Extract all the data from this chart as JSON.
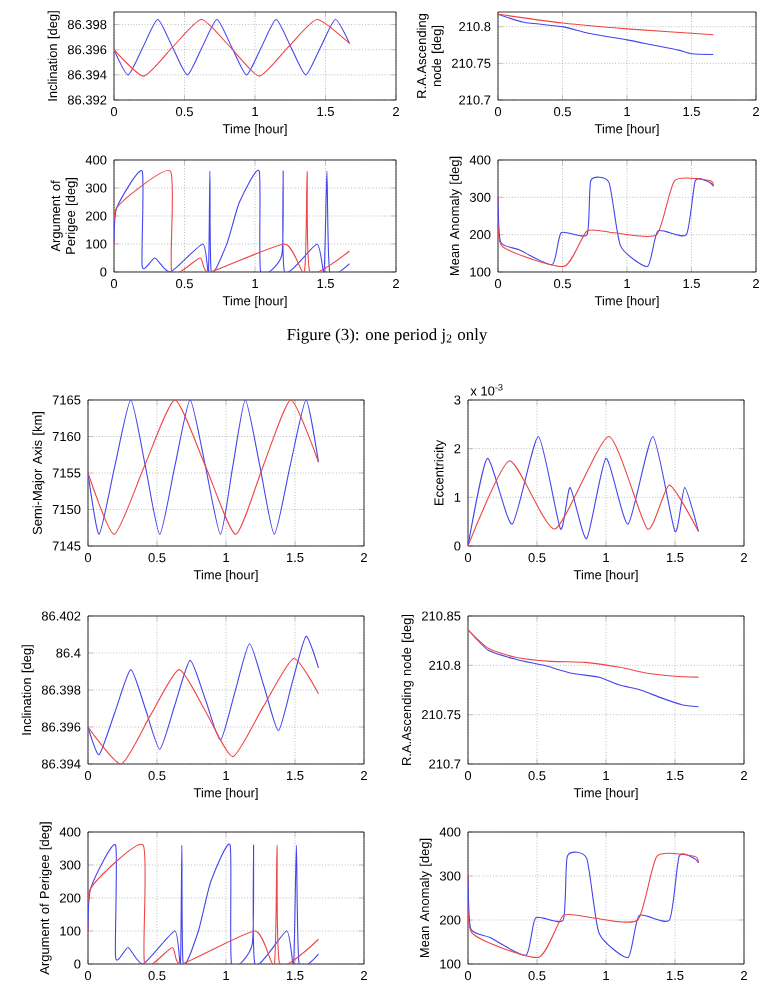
{
  "chart_data": [
    {
      "type": "line",
      "xlabel": "Time [hour]",
      "ylabel": "Inclination [deg]",
      "xlim": [
        0,
        2
      ],
      "xticks": [
        0,
        0.5,
        1,
        1.5,
        2
      ],
      "ylim": [
        86.392,
        86.399
      ],
      "yticks": [
        86.392,
        86.394,
        86.396,
        86.398
      ],
      "grid": true,
      "series": [
        {
          "color": "#4444ee",
          "x": [
            0,
            0.1,
            0.205,
            0.31,
            0.415,
            0.52,
            0.625,
            0.73,
            0.835,
            0.94,
            1.045,
            1.15,
            1.255,
            1.36,
            1.465,
            1.57,
            1.67
          ],
          "values": [
            86.396,
            86.394,
            86.3962,
            86.3984,
            86.3962,
            86.394,
            86.3962,
            86.3984,
            86.3962,
            86.394,
            86.3962,
            86.3984,
            86.3962,
            86.394,
            86.3962,
            86.3984,
            86.3965
          ]
        },
        {
          "color": "#ee4444",
          "x": [
            0,
            0.21,
            0.415,
            0.62,
            0.825,
            1.03,
            1.235,
            1.44,
            1.67
          ],
          "values": [
            86.396,
            86.3939,
            86.3962,
            86.3984,
            86.3962,
            86.3939,
            86.3962,
            86.3984,
            86.3965
          ]
        }
      ]
    },
    {
      "type": "line",
      "xlabel": "Time [hour]",
      "ylabel": "R.A.Ascending node [deg]",
      "xlim": [
        0,
        2
      ],
      "xticks": [
        0,
        0.5,
        1,
        1.5,
        2
      ],
      "ylim": [
        210.7,
        210.82
      ],
      "yticks": [
        210.7,
        210.75,
        210.8
      ],
      "grid": true,
      "series": [
        {
          "color": "#4444ee",
          "x": [
            0,
            0.2,
            0.5,
            0.7,
            1.0,
            1.2,
            1.4,
            1.5,
            1.67
          ],
          "values": [
            210.817,
            210.806,
            210.8,
            210.791,
            210.782,
            210.775,
            210.768,
            210.763,
            210.762
          ]
        },
        {
          "color": "#ee4444",
          "x": [
            0,
            0.5,
            1.0,
            1.67
          ],
          "values": [
            210.817,
            210.805,
            210.797,
            210.789
          ]
        }
      ]
    },
    {
      "type": "line",
      "xlabel": "Time [hour]",
      "ylabel": "Argument of Perigee [deg]",
      "xlim": [
        0,
        2
      ],
      "xticks": [
        0,
        0.5,
        1,
        1.5,
        2
      ],
      "ylim": [
        0,
        400
      ],
      "yticks": [
        0,
        100,
        200,
        300,
        400
      ],
      "grid": true,
      "series": [
        {
          "color": "#4444ee",
          "x": [
            0,
            0.02,
            0.2,
            0.2,
            0.29,
            0.4,
            0.63,
            0.67,
            0.68,
            0.69,
            0.8,
            0.89,
            1.03,
            1.04,
            1.19,
            1.2,
            1.21,
            1.44,
            1.49,
            1.51,
            1.53,
            1.67
          ],
          "values": [
            100,
            230,
            360,
            20,
            50,
            0,
            100,
            0,
            360,
            0,
            100,
            250,
            360,
            0,
            60,
            360,
            0,
            100,
            0,
            360,
            0,
            30
          ]
        },
        {
          "color": "#ee4444",
          "x": [
            0,
            0.02,
            0.4,
            0.41,
            0.61,
            0.68,
            1.21,
            1.35,
            1.37,
            1.39,
            1.67
          ],
          "values": [
            100,
            230,
            360,
            0,
            50,
            0,
            100,
            0,
            360,
            0,
            75
          ]
        }
      ]
    },
    {
      "type": "line",
      "xlabel": "Time [hour]",
      "ylabel": "Mean Anomaly [deg]",
      "xlim": [
        0,
        2
      ],
      "xticks": [
        0,
        0.5,
        1,
        1.5,
        2
      ],
      "ylim": [
        100,
        400
      ],
      "yticks": [
        100,
        200,
        300,
        400
      ],
      "grid": true,
      "annotations": [
        "Figure (3): one period j$_{2}$ only"
      ],
      "series": [
        {
          "color": "#4444ee",
          "x": [
            0,
            0.02,
            0.16,
            0.42,
            0.49,
            0.69,
            0.72,
            0.86,
            0.95,
            1.16,
            1.24,
            1.46,
            1.53,
            1.64,
            1.67
          ],
          "values": [
            300,
            180,
            160,
            120,
            205,
            200,
            345,
            340,
            170,
            115,
            210,
            200,
            345,
            340,
            330
          ]
        },
        {
          "color": "#ee4444",
          "x": [
            0,
            0.03,
            0.51,
            0.69,
            0.9,
            1.23,
            1.37,
            1.64,
            1.67
          ],
          "values": [
            300,
            170,
            115,
            210,
            205,
            200,
            345,
            345,
            330
          ]
        }
      ]
    },
    {
      "type": "line",
      "xlabel": "Time [hour]",
      "ylabel": "Semi-Major Axis [km]",
      "xlim": [
        0,
        2
      ],
      "xticks": [
        0,
        0.5,
        1,
        1.5,
        2
      ],
      "ylim": [
        7145,
        7165
      ],
      "yticks": [
        7145,
        7150,
        7155,
        7160,
        7165
      ],
      "grid": true,
      "series": [
        {
          "color": "#4444ee",
          "x": [
            0,
            0.08,
            0.195,
            0.31,
            0.415,
            0.52,
            0.63,
            0.74,
            0.85,
            0.96,
            1.05,
            1.14,
            1.245,
            1.35,
            1.465,
            1.58,
            1.67
          ],
          "values": [
            7155,
            7146.6,
            7156,
            7165,
            7156,
            7146.6,
            7156,
            7165,
            7156,
            7146.6,
            7156,
            7165,
            7156,
            7146.6,
            7156,
            7165,
            7156.5
          ]
        },
        {
          "color": "#ee4444",
          "x": [
            0,
            0.19,
            0.41,
            0.63,
            0.85,
            1.07,
            1.27,
            1.47,
            1.67
          ],
          "values": [
            7155,
            7146.6,
            7156,
            7165,
            7156,
            7146.6,
            7156,
            7165,
            7156.5
          ]
        }
      ]
    },
    {
      "type": "line",
      "xlabel": "Time [hour]",
      "ylabel": "Eccentricity",
      "xlim": [
        0,
        2
      ],
      "xticks": [
        0,
        0.5,
        1,
        1.5,
        2
      ],
      "ylim": [
        0,
        3
      ],
      "yticks": [
        0,
        1,
        2,
        3
      ],
      "grid": true,
      "annotations": [
        "x 10$^{-3}$"
      ],
      "series": [
        {
          "color": "#4444ee",
          "x": [
            0,
            0.14,
            0.32,
            0.51,
            0.67,
            0.74,
            0.86,
            1.0,
            1.16,
            1.34,
            1.5,
            1.57,
            1.67
          ],
          "values": [
            0,
            1.8,
            0.45,
            2.25,
            0.35,
            1.2,
            0.15,
            1.8,
            0.45,
            2.25,
            0.3,
            1.2,
            0.3
          ]
        },
        {
          "color": "#ee4444",
          "x": [
            0,
            0.3,
            0.63,
            1.02,
            1.3,
            1.46,
            1.67
          ],
          "values": [
            0,
            1.75,
            0.35,
            2.25,
            0.35,
            1.25,
            0.3
          ]
        }
      ]
    },
    {
      "type": "line",
      "xlabel": "Time [hour]",
      "ylabel": "Inclination [deg]",
      "xlim": [
        0,
        2
      ],
      "xticks": [
        0,
        0.5,
        1,
        1.5,
        2
      ],
      "ylim": [
        86.394,
        86.402
      ],
      "yticks": [
        86.394,
        86.396,
        86.398,
        86.4,
        86.402
      ],
      "grid": true,
      "series": [
        {
          "color": "#4444ee",
          "x": [
            0,
            0.08,
            0.195,
            0.31,
            0.415,
            0.52,
            0.63,
            0.74,
            0.85,
            0.96,
            1.065,
            1.17,
            1.275,
            1.38,
            1.48,
            1.58,
            1.67
          ],
          "values": [
            86.396,
            86.3945,
            86.3968,
            86.3991,
            86.397,
            86.3948,
            86.3972,
            86.3996,
            86.3975,
            86.3953,
            86.3979,
            86.4005,
            86.3982,
            86.3958,
            86.3984,
            86.4009,
            86.3992
          ]
        },
        {
          "color": "#ee4444",
          "x": [
            0,
            0.24,
            0.45,
            0.66,
            0.855,
            1.05,
            1.27,
            1.49,
            1.67
          ],
          "values": [
            86.396,
            86.394,
            86.3966,
            86.3991,
            86.3968,
            86.3944,
            86.3971,
            86.3997,
            86.3978
          ]
        }
      ]
    },
    {
      "type": "line",
      "xlabel": "Time [hour]",
      "ylabel": "R.A.Ascending node [deg]",
      "xlim": [
        0,
        2
      ],
      "xticks": [
        0,
        0.5,
        1,
        1.5,
        2
      ],
      "ylim": [
        210.7,
        210.85
      ],
      "yticks": [
        210.7,
        210.75,
        210.8,
        210.85
      ],
      "grid": true,
      "series": [
        {
          "color": "#4444ee",
          "x": [
            0,
            0.15,
            0.35,
            0.55,
            0.75,
            0.95,
            1.1,
            1.25,
            1.4,
            1.55,
            1.67
          ],
          "values": [
            210.836,
            210.815,
            210.806,
            210.8,
            210.792,
            210.788,
            210.78,
            210.775,
            210.767,
            210.76,
            210.758
          ]
        },
        {
          "color": "#ee4444",
          "x": [
            0,
            0.15,
            0.35,
            0.6,
            0.85,
            1.1,
            1.3,
            1.5,
            1.67
          ],
          "values": [
            210.836,
            210.817,
            210.808,
            210.804,
            210.803,
            210.798,
            210.792,
            210.789,
            210.788
          ]
        }
      ]
    },
    {
      "type": "line",
      "ylabel": "Argument of Perigee [deg]",
      "xlim": [
        0,
        2
      ],
      "xticks": [
        0,
        0.5,
        1,
        1.5,
        2
      ],
      "ylim": [
        0,
        400
      ],
      "yticks": [
        0,
        100,
        200,
        300,
        400
      ],
      "grid": true,
      "series": [
        {
          "color": "#4444ee",
          "x": [
            0,
            0.02,
            0.2,
            0.2,
            0.29,
            0.4,
            0.63,
            0.67,
            0.68,
            0.69,
            0.8,
            0.89,
            1.03,
            1.04,
            1.19,
            1.2,
            1.21,
            1.44,
            1.49,
            1.51,
            1.53,
            1.67
          ],
          "values": [
            100,
            230,
            360,
            20,
            50,
            0,
            100,
            0,
            360,
            0,
            100,
            250,
            360,
            0,
            60,
            360,
            0,
            100,
            0,
            360,
            0,
            30
          ]
        },
        {
          "color": "#ee4444",
          "x": [
            0,
            0.02,
            0.4,
            0.41,
            0.61,
            0.68,
            1.21,
            1.35,
            1.37,
            1.39,
            1.67
          ],
          "values": [
            100,
            230,
            360,
            0,
            50,
            0,
            100,
            0,
            360,
            0,
            75
          ]
        }
      ]
    },
    {
      "type": "line",
      "ylabel": "Mean Anomaly [deg]",
      "xlim": [
        0,
        2
      ],
      "xticks": [
        0,
        0.5,
        1,
        1.5,
        2
      ],
      "ylim": [
        100,
        400
      ],
      "yticks": [
        100,
        200,
        300,
        400
      ],
      "grid": true,
      "series": [
        {
          "color": "#4444ee",
          "x": [
            0,
            0.02,
            0.16,
            0.42,
            0.49,
            0.69,
            0.72,
            0.86,
            0.95,
            1.16,
            1.24,
            1.46,
            1.53,
            1.64,
            1.67
          ],
          "values": [
            300,
            180,
            160,
            120,
            205,
            200,
            345,
            340,
            170,
            115,
            210,
            200,
            345,
            340,
            330
          ]
        },
        {
          "color": "#ee4444",
          "x": [
            0,
            0.03,
            0.51,
            0.69,
            0.9,
            1.23,
            1.37,
            1.64,
            1.67
          ],
          "values": [
            300,
            170,
            115,
            210,
            205,
            200,
            345,
            345,
            330
          ]
        }
      ]
    }
  ]
}
